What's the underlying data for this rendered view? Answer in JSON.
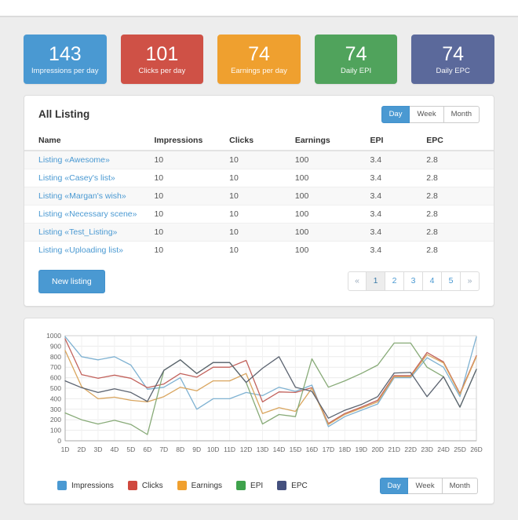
{
  "stat_cards": [
    {
      "value": "143",
      "label": "Impressions per day",
      "color": "#4a99d2"
    },
    {
      "value": "101",
      "label": "Clicks per day",
      "color": "#cf5146"
    },
    {
      "value": "74",
      "label": "Earnings per day",
      "color": "#efa02f"
    },
    {
      "value": "74",
      "label": "Daily EPI",
      "color": "#50a35c"
    },
    {
      "value": "74",
      "label": "Daily EPC",
      "color": "#5b699b"
    }
  ],
  "listing_panel": {
    "title": "All Listing",
    "period_buttons": [
      "Day",
      "Week",
      "Month"
    ],
    "active_period": "Day",
    "table": {
      "columns": [
        "Name",
        "Impressions",
        "Clicks",
        "Earnings",
        "EPI",
        "EPC"
      ],
      "rows": [
        {
          "name": "Listing «Awesome»",
          "impressions": "10",
          "clicks": "10",
          "earnings": "100",
          "epi": "3.4",
          "epc": "2.8"
        },
        {
          "name": "Listing «Casey's list»",
          "impressions": "10",
          "clicks": "10",
          "earnings": "100",
          "epi": "3.4",
          "epc": "2.8"
        },
        {
          "name": "Listing «Margan's wish»",
          "impressions": "10",
          "clicks": "10",
          "earnings": "100",
          "epi": "3.4",
          "epc": "2.8"
        },
        {
          "name": "Listing «Necessary scene»",
          "impressions": "10",
          "clicks": "10",
          "earnings": "100",
          "epi": "3.4",
          "epc": "2.8"
        },
        {
          "name": "Listing «Test_Listing»",
          "impressions": "10",
          "clicks": "10",
          "earnings": "100",
          "epi": "3.4",
          "epc": "2.8"
        },
        {
          "name": "Listing «Uploading list»",
          "impressions": "10",
          "clicks": "10",
          "earnings": "100",
          "epi": "3.4",
          "epc": "2.8"
        }
      ]
    },
    "new_listing_label": "New listing",
    "pagination": [
      "«",
      "1",
      "2",
      "3",
      "4",
      "5",
      "»"
    ],
    "active_page": "1"
  },
  "chart_panel": {
    "period_buttons": [
      "Day",
      "Week",
      "Month"
    ],
    "active_period": "Day",
    "legend": [
      {
        "label": "Impressions",
        "color": "#4a99d2"
      },
      {
        "label": "Clicks",
        "color": "#d0493f"
      },
      {
        "label": "Earnings",
        "color": "#f0a02f"
      },
      {
        "label": "EPI",
        "color": "#3fa24c"
      },
      {
        "label": "EPC",
        "color": "#44507e"
      }
    ]
  },
  "chart_data": {
    "type": "line",
    "x": [
      "1D",
      "2D",
      "3D",
      "4D",
      "5D",
      "6D",
      "7D",
      "8D",
      "9D",
      "10D",
      "11D",
      "12D",
      "13D",
      "14D",
      "15D",
      "16D",
      "17D",
      "18D",
      "19D",
      "20D",
      "21D",
      "22D",
      "23D",
      "24D",
      "25D",
      "26D"
    ],
    "ylim": [
      0,
      1000
    ],
    "ytick_step": 100,
    "grid": true,
    "legend_position": "bottom",
    "series": [
      {
        "name": "Impressions",
        "color": "#7fb2d2",
        "values": [
          990,
          800,
          770,
          800,
          720,
          490,
          510,
          600,
          300,
          400,
          400,
          460,
          430,
          510,
          470,
          530,
          135,
          230,
          290,
          350,
          600,
          600,
          790,
          700,
          420,
          990
        ]
      },
      {
        "name": "Clicks",
        "color": "#c2625c",
        "values": [
          970,
          630,
          595,
          625,
          595,
          505,
          540,
          640,
          605,
          700,
          700,
          765,
          370,
          465,
          460,
          505,
          165,
          260,
          320,
          385,
          620,
          620,
          840,
          750,
          450,
          810
        ]
      },
      {
        "name": "Earnings",
        "color": "#d9a55e",
        "values": [
          860,
          515,
          400,
          415,
          385,
          370,
          420,
          510,
          475,
          570,
          570,
          640,
          260,
          315,
          280,
          500,
          155,
          250,
          310,
          370,
          610,
          610,
          820,
          740,
          440,
          800
        ]
      },
      {
        "name": "EPI",
        "color": "#87aa77",
        "values": [
          265,
          200,
          160,
          195,
          155,
          60,
          670,
          770,
          640,
          745,
          745,
          555,
          160,
          250,
          230,
          780,
          510,
          570,
          640,
          720,
          930,
          930,
          700,
          610,
          320,
          680
        ]
      },
      {
        "name": "EPC",
        "color": "#5b6370",
        "values": [
          570,
          505,
          460,
          495,
          460,
          375,
          670,
          770,
          640,
          745,
          745,
          555,
          690,
          800,
          510,
          470,
          215,
          290,
          345,
          420,
          645,
          650,
          420,
          610,
          320,
          680
        ]
      }
    ]
  }
}
